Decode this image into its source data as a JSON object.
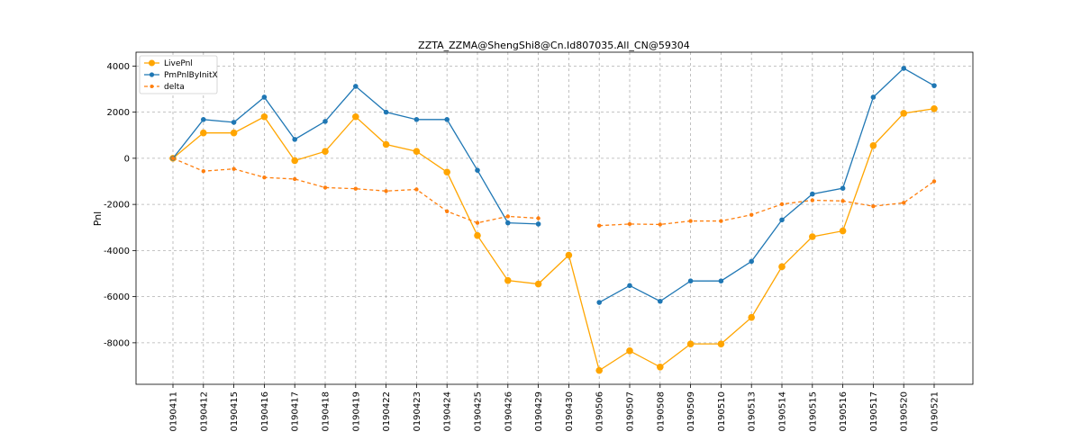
{
  "chart_data": {
    "type": "line",
    "title": "ZZTA_ZZMA@ShengShi8@Cn.Id807035.All_CN@59304",
    "xlabel": "",
    "ylabel": "Pnl",
    "ylim": [
      -9800,
      4600
    ],
    "yticks": [
      -8000,
      -6000,
      -4000,
      -2000,
      0,
      2000,
      4000
    ],
    "grid": true,
    "legend_position": "top-left",
    "categories": [
      "20190411",
      "20190412",
      "20190415",
      "20190416",
      "20190417",
      "20190418",
      "20190419",
      "20190422",
      "20190423",
      "20190424",
      "20190425",
      "20190426",
      "20190429",
      "20190430",
      "20190506",
      "20190507",
      "20190508",
      "20190509",
      "20190510",
      "20190513",
      "20190514",
      "20190515",
      "20190516",
      "20190517",
      "20190520",
      "20190521"
    ],
    "series": [
      {
        "name": "LivePnl",
        "color": "#ffa500",
        "style": "solid",
        "marker": "circle",
        "values": [
          0,
          1100,
          1100,
          1800,
          -100,
          300,
          1800,
          600,
          300,
          -600,
          -3350,
          -5300,
          -5450,
          -4200,
          -9200,
          -8350,
          -9050,
          -8050,
          -8050,
          -6900,
          -4700,
          -3400,
          -3150,
          550,
          1950,
          2150
        ]
      },
      {
        "name": "PmPnlByInitX",
        "color": "#1f77b4",
        "style": "solid",
        "marker": "circle",
        "values": [
          0,
          1680,
          1560,
          2650,
          820,
          1600,
          3120,
          2000,
          1680,
          1680,
          -520,
          -2800,
          -2850,
          null,
          -6250,
          -5520,
          -6200,
          -5320,
          -5320,
          -4470,
          -2670,
          -1550,
          -1300,
          2650,
          3900,
          3150
        ]
      },
      {
        "name": "delta",
        "color": "#ff7f0e",
        "style": "dashed",
        "marker": "circle",
        "values": [
          0,
          -560,
          -460,
          -830,
          -900,
          -1270,
          -1320,
          -1420,
          -1350,
          -2300,
          -2800,
          -2520,
          -2600,
          null,
          -2920,
          -2850,
          -2870,
          -2720,
          -2720,
          -2450,
          -1990,
          -1820,
          -1850,
          -2080,
          -1930,
          -1000
        ]
      }
    ]
  }
}
